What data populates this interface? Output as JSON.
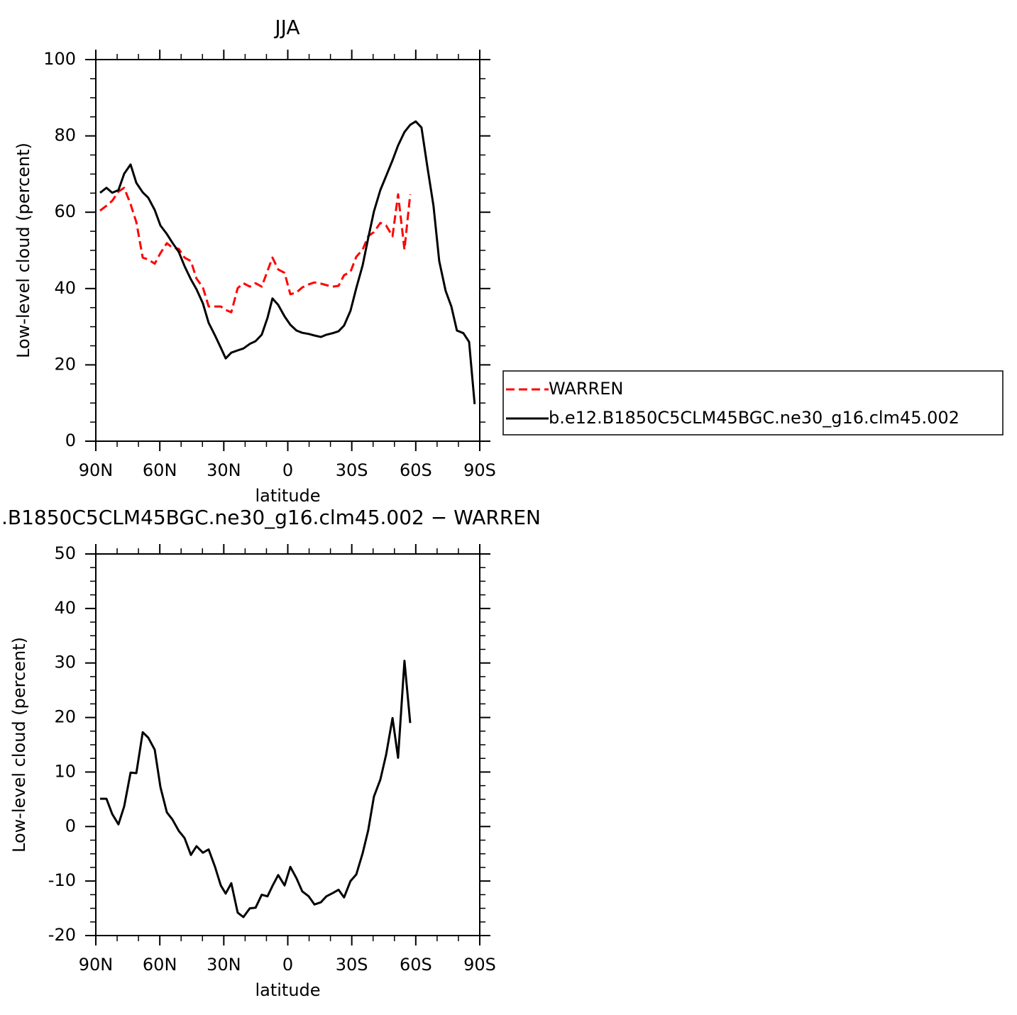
{
  "chart_data": [
    {
      "type": "line",
      "title": "JJA",
      "xlabel": "latitude",
      "ylabel": "Low-level cloud (percent)",
      "x": [
        88,
        85,
        82.3,
        79.4,
        76.7,
        73.7,
        71,
        68,
        65.4,
        62.4,
        59.7,
        56.7,
        54.1,
        51.1,
        48.4,
        45.4,
        42.8,
        39.8,
        37.1,
        34.1,
        31.4,
        29.1,
        26.5,
        23.5,
        20.8,
        17.8,
        15.1,
        12.2,
        9.5,
        7.2,
        4.5,
        1.5,
        -1.2,
        -4.1,
        -6.8,
        -9.8,
        -12.5,
        -15.5,
        -18.1,
        -21.1,
        -23.8,
        -26.4,
        -29.4,
        -32.1,
        -35.1,
        -37.7,
        -40.4,
        -43.4,
        -46.1,
        -49.1,
        -51.7,
        -54.7,
        -57.4,
        -60,
        -62.7,
        -65.4,
        -68.3,
        -71,
        -74,
        -76.7,
        -79.3,
        -82.3,
        -85,
        -87.6
      ],
      "series": [
        {
          "name": "WARREN",
          "color": "#ff0000",
          "line_style": "dashed",
          "values": [
            60.4,
            61.7,
            63,
            65.4,
            66.4,
            62.1,
            57.4,
            48.1,
            47.6,
            46.5,
            49.3,
            51.9,
            50.7,
            50.4,
            48.1,
            47.2,
            42.6,
            40.3,
            35.3,
            35.3,
            35.3,
            34.4,
            33.8,
            40.1,
            41.4,
            40.5,
            41.4,
            40.5,
            44.6,
            48.1,
            45,
            44.1,
            38.5,
            39,
            40.3,
            41.1,
            41.6,
            41.3,
            40.9,
            40.5,
            40.7,
            43.5,
            44.4,
            48.3,
            50.2,
            53.7,
            54.8,
            57.2,
            56.5,
            53.7,
            64.7,
            50.2,
            64.7,
            null,
            null,
            null,
            null,
            null,
            null,
            null,
            null,
            null,
            null,
            null
          ]
        },
        {
          "name": "b.e12.B1850C5CLM45BGC.ne30_g16.clm45.002",
          "color": "#000000",
          "line_style": "solid",
          "values": [
            65.1,
            66.4,
            65.1,
            65.8,
            70.1,
            72.5,
            67.7,
            65.2,
            63.8,
            60.6,
            56.5,
            54.3,
            52,
            49.6,
            45.9,
            42.4,
            39.8,
            36.1,
            31,
            27.7,
            24.5,
            21.7,
            23.2,
            23.8,
            24.3,
            25.5,
            26.2,
            27.9,
            32.3,
            37.4,
            35.7,
            32.7,
            30.5,
            29,
            28.4,
            28.1,
            27.7,
            27.3,
            27.9,
            28.3,
            28.8,
            30.3,
            34.2,
            40.1,
            46.1,
            53.2,
            60.2,
            65.8,
            69.5,
            73.6,
            77.5,
            81,
            82.9,
            83.8,
            82.2,
            72,
            61.7,
            47.2,
            39.4,
            35.3,
            29,
            28.3,
            26,
            9.7
          ]
        }
      ],
      "xlim": [
        90,
        -90
      ],
      "xticks": [
        {
          "value": 90,
          "label": "90N"
        },
        {
          "value": 60,
          "label": "60N"
        },
        {
          "value": 30,
          "label": "30N"
        },
        0,
        {
          "value": -30,
          "label": "30S"
        },
        {
          "value": -60,
          "label": "60S"
        },
        {
          "value": -90,
          "label": "90S"
        }
      ],
      "xminorticks": [
        80,
        70,
        50,
        40,
        20,
        10,
        -10,
        -20,
        -40,
        -50,
        -70,
        -80
      ],
      "ylim": [
        0,
        100
      ],
      "yticks": [
        0,
        20,
        40,
        60,
        80,
        100
      ],
      "yminorticks": [
        5,
        10,
        15,
        25,
        30,
        35,
        45,
        50,
        55,
        65,
        70,
        75,
        85,
        90,
        95
      ],
      "legend": "right"
    },
    {
      "type": "line",
      "title": ".B1850C5CLM45BGC.ne30_g16.clm45.002 − WARREN",
      "xlabel": "latitude",
      "ylabel": "Low-level cloud (percent)",
      "x": [
        88,
        85,
        82.3,
        79.4,
        76.7,
        73.7,
        71,
        68,
        65.4,
        62.4,
        59.7,
        56.7,
        54.1,
        51.1,
        48.4,
        45.4,
        42.8,
        39.8,
        37.1,
        34.1,
        31.4,
        29.1,
        26.5,
        23.5,
        20.8,
        17.8,
        15.1,
        12.2,
        9.5,
        7.2,
        4.5,
        1.5,
        -1.2,
        -4.1,
        -6.8,
        -9.8,
        -12.5,
        -15.5,
        -18.1,
        -21.1,
        -23.8,
        -26.4,
        -29.4,
        -32.1,
        -35.1,
        -37.7,
        -40.4,
        -43.4,
        -46.1,
        -49.1,
        -51.7,
        -54.7,
        -57.4
      ],
      "series": [
        {
          "color": "#000000",
          "line_style": "solid",
          "values": [
            5.1,
            5.1,
            2.3,
            0.4,
            3.7,
            9.9,
            9.8,
            17.3,
            16.3,
            14.1,
            7.2,
            2.6,
            1.3,
            -0.8,
            -2.1,
            -5.2,
            -3.6,
            -4.8,
            -4.2,
            -7.4,
            -10.8,
            -12.3,
            -10.4,
            -15.8,
            -16.6,
            -15,
            -14.9,
            -12.5,
            -12.8,
            -10.9,
            -8.9,
            -10.8,
            -7.4,
            -9.5,
            -11.9,
            -12.8,
            -14.3,
            -13.9,
            -12.8,
            -12.2,
            -11.6,
            -13,
            -10,
            -8.8,
            -4.9,
            -0.7,
            5.5,
            8.6,
            13.2,
            19.9,
            12.6,
            30.4,
            19
          ]
        }
      ],
      "xlim": [
        90,
        -90
      ],
      "xticks": [
        {
          "value": 90,
          "label": "90N"
        },
        {
          "value": 60,
          "label": "60N"
        },
        {
          "value": 30,
          "label": "30N"
        },
        0,
        {
          "value": -30,
          "label": "30S"
        },
        {
          "value": -60,
          "label": "60S"
        },
        {
          "value": -90,
          "label": "90S"
        }
      ],
      "xminorticks": [
        80,
        70,
        50,
        40,
        20,
        10,
        -10,
        -20,
        -40,
        -50,
        -70,
        -80
      ],
      "ylim": [
        -20,
        50
      ],
      "yticks": [
        -20,
        -10,
        0,
        10,
        20,
        30,
        40,
        50
      ],
      "yminorticks": [
        -17.5,
        -15,
        -12.5,
        -7.5,
        -5,
        -2.5,
        2.5,
        5,
        7.5,
        12.5,
        15,
        17.5,
        22.5,
        25,
        27.5,
        32.5,
        35,
        37.5,
        42.5,
        45,
        47.5
      ]
    }
  ]
}
